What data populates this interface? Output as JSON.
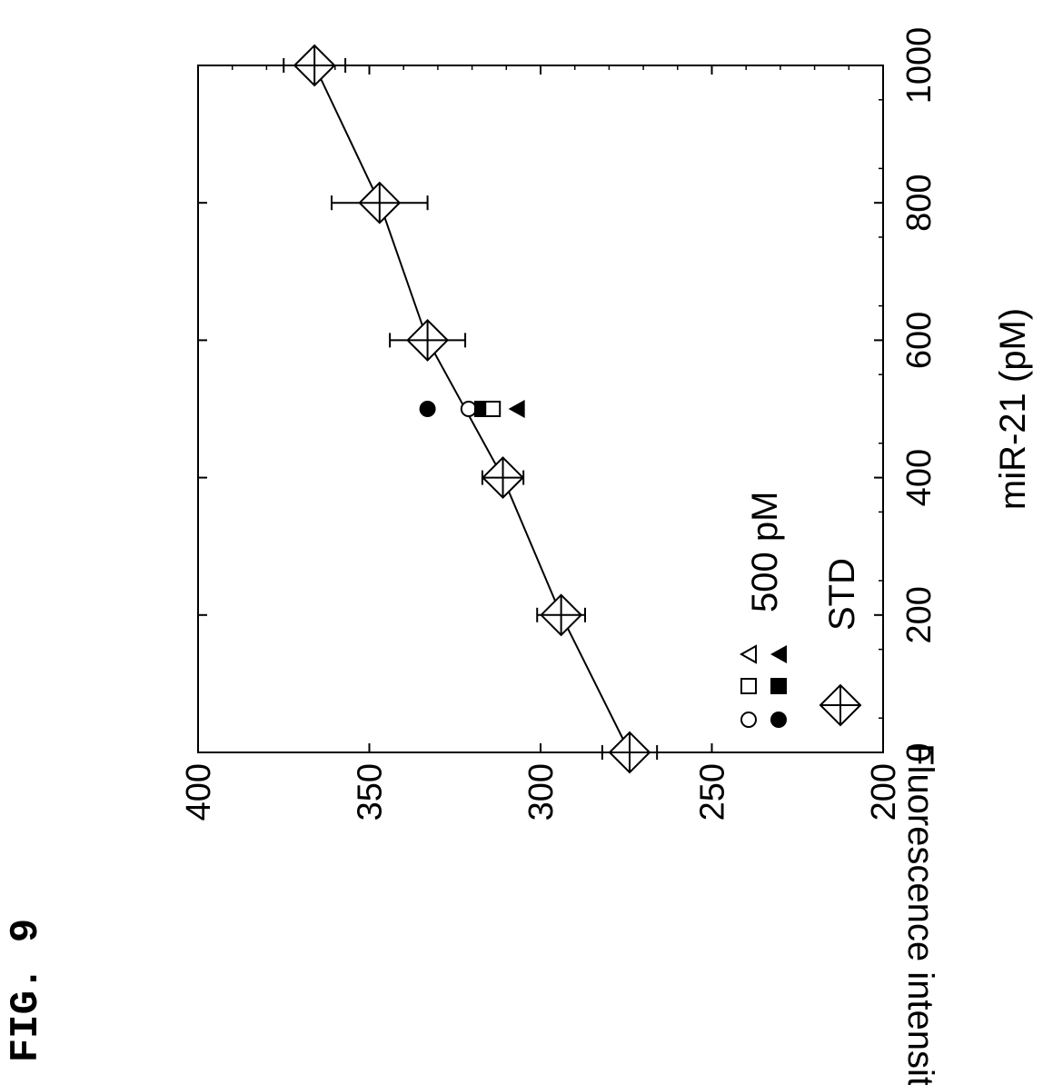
{
  "figure_label": "FIG. 9",
  "chart_data": {
    "type": "scatter",
    "title": "",
    "xlabel": "miR-21 (pM)",
    "ylabel": "Fluorescence intensity",
    "xlim": [
      0,
      1000
    ],
    "ylim": [
      200,
      400
    ],
    "x_ticks": [
      0,
      200,
      400,
      600,
      800,
      1000
    ],
    "y_ticks": [
      200,
      250,
      300,
      350,
      400
    ],
    "grid": false,
    "legend_position": "top-left",
    "series": [
      {
        "name": "STD",
        "marker": "crossed-diamond",
        "line": true,
        "x": [
          0,
          200,
          400,
          600,
          800,
          1000
        ],
        "y": [
          274,
          294,
          311,
          333,
          347,
          366
        ],
        "error": [
          8,
          7,
          6,
          11,
          14,
          9
        ]
      },
      {
        "name": "500 pM",
        "marker": "filled-circle",
        "x": [
          500
        ],
        "y": [
          333
        ]
      },
      {
        "name": "",
        "marker": "open-circle",
        "x": [
          500
        ],
        "y": [
          321
        ]
      },
      {
        "name": "",
        "marker": "filled-square",
        "x": [
          500
        ],
        "y": [
          317
        ]
      },
      {
        "name": "",
        "marker": "open-square",
        "x": [
          500
        ],
        "y": [
          314
        ]
      },
      {
        "name": "",
        "marker": "filled-triangle",
        "x": [
          500
        ],
        "y": [
          307
        ]
      }
    ],
    "legend": [
      {
        "label": "STD",
        "markers": [
          "crossed-diamond"
        ]
      },
      {
        "label": "500 pM",
        "markers": [
          "filled-circle",
          "filled-square",
          "filled-triangle",
          "open-circle",
          "open-square",
          "open-triangle"
        ]
      }
    ]
  }
}
